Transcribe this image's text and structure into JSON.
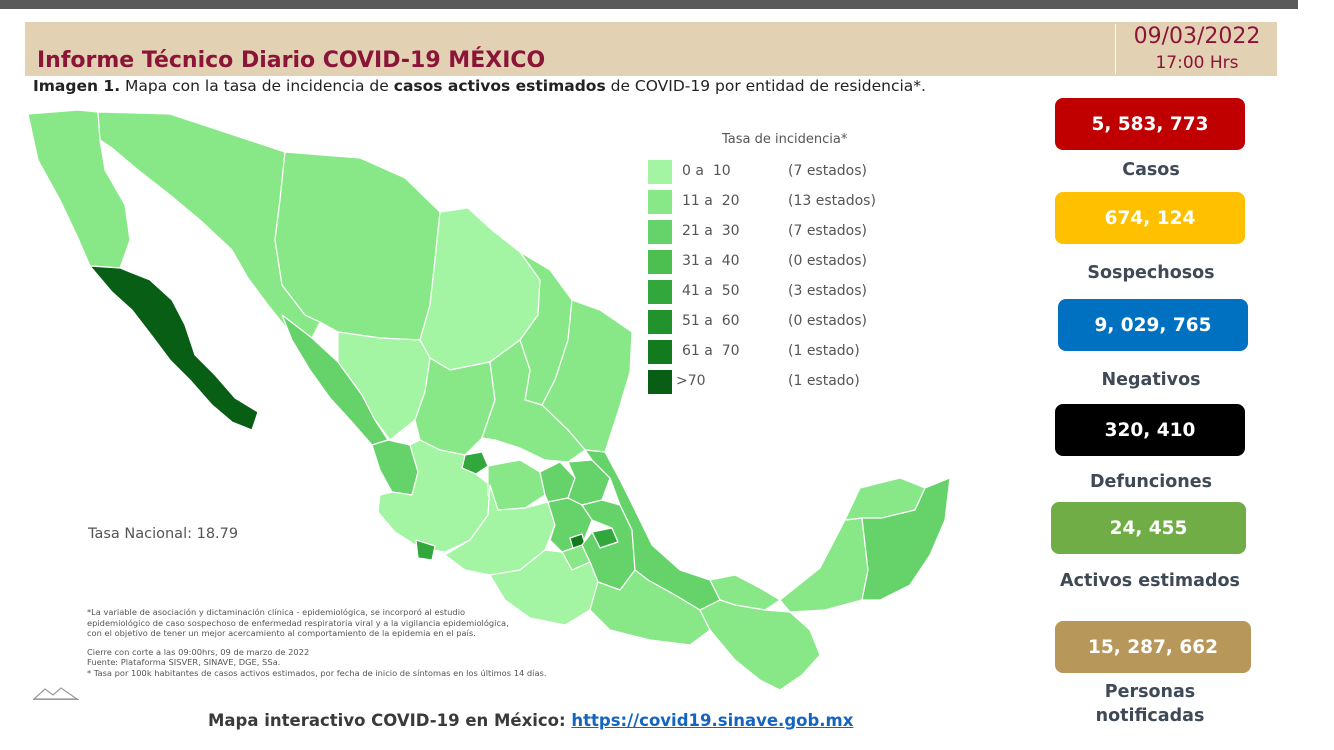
{
  "header": {
    "title": "Informe Técnico Diario COVID-19 MÉXICO",
    "date": "09/03/2022",
    "time": "17:00 Hrs"
  },
  "caption": {
    "prefix": "Imagen 1.",
    "part1": " Mapa con la tasa de incidencia de ",
    "bold": "casos activos estimados",
    "part2": " de COVID-19 por entidad de residencia*."
  },
  "legend": {
    "title": "Tasa de incidencia*",
    "items": [
      {
        "range": "0 a  10",
        "count": "(7 estados)",
        "color": "#a3f5a3"
      },
      {
        "range": "11 a  20",
        "count": "(13 estados)",
        "color": "#88e888"
      },
      {
        "range": "21 a  30",
        "count": "(7 estados)",
        "color": "#66d26a"
      },
      {
        "range": "31 a  40",
        "count": "(0 estados)",
        "color": "#4cbf50"
      },
      {
        "range": "41 a  50",
        "count": "(3 estados)",
        "color": "#32a83c"
      },
      {
        "range": "51 a  60",
        "count": "(0 estados)",
        "color": "#21922c"
      },
      {
        "range": "61 a  70",
        "count": "(1 estado)",
        "color": "#137a1e"
      },
      {
        "range": ">70",
        "count": "(1 estado)",
        "color": "#075e14"
      }
    ]
  },
  "national_rate": "Tasa Nacional: 18.79",
  "notes": [
    "*La variable de asociación y dictaminación clínica - epidemiológica, se incorporó al estudio",
    "epidemiológico de caso sospechoso de enfermedad respiratoria viral y a la vigilancia epidemiológica,",
    "con el objetivo de tener un mejor acercamiento al comportamiento de la epidemia en el país.",
    "Cierre con corte a las 09:00hrs, 09 de marzo de 2022",
    "Fuente: Plataforma SISVER, SINAVE, DGE, SSa.",
    "* Tasa por 100k habitantes de casos activos estimados, por fecha de inicio de síntomas en los últimos 14 días."
  ],
  "footer": {
    "label": "Mapa interactivo COVID-19 en México: ",
    "link": "https://covid19.sinave.gob.mx"
  },
  "stats": [
    {
      "value": "5, 583, 773",
      "label": "Casos",
      "color": "#c00000"
    },
    {
      "value": "674, 124",
      "label": "Sospechosos",
      "color": "#ffc000"
    },
    {
      "value": "9, 029, 765",
      "label": "Negativos",
      "color": "#0070c0"
    },
    {
      "value": "320, 410",
      "label": "Defunciones",
      "color": "#000000"
    },
    {
      "value": "24, 455",
      "label": "Activos estimados",
      "color": "#70ad47"
    },
    {
      "value": "15, 287, 662",
      "label": "Personas notificadas",
      "color": "#b8975a"
    }
  ]
}
